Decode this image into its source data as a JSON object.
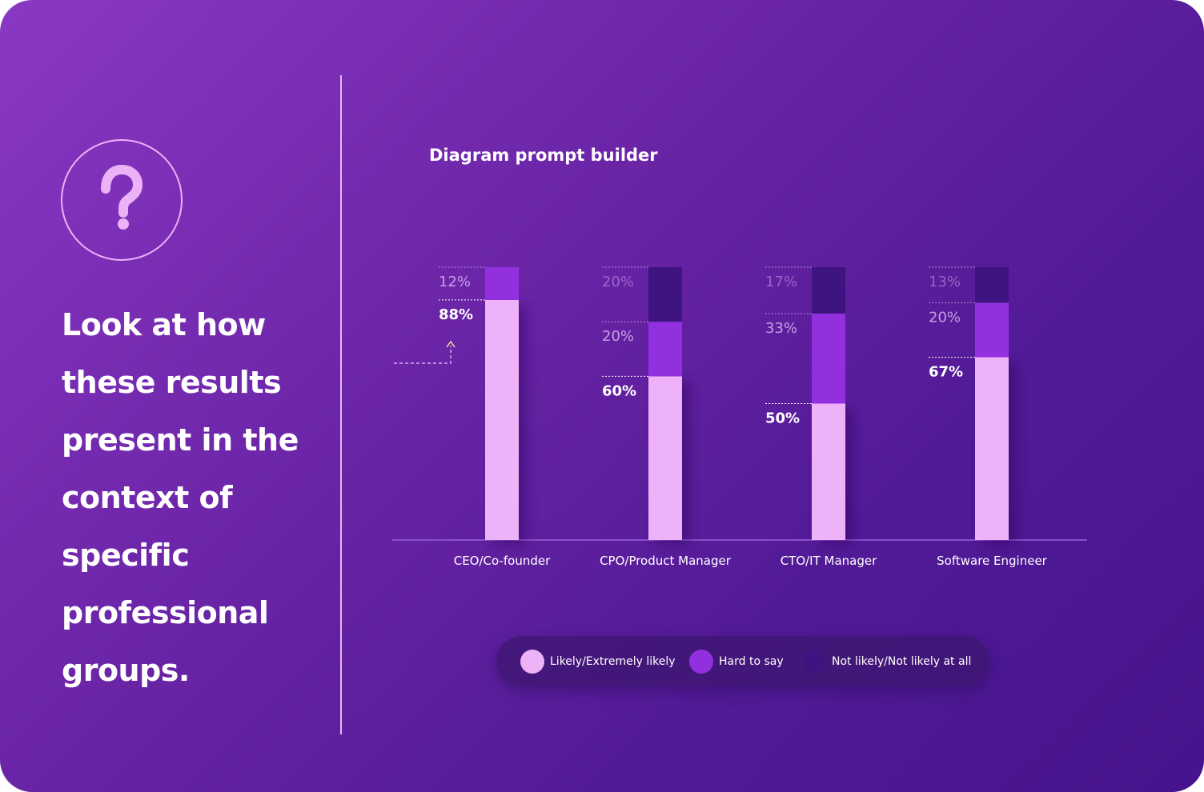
{
  "left_panel": {
    "icon": "question-mark-icon",
    "headline": "Look at how these results present in the context of specific professional groups."
  },
  "chart_data": {
    "type": "bar",
    "stacked": true,
    "title": "Diagram prompt builder",
    "categories": [
      "CEO/Co-founder",
      "CPO/Product Manager",
      "CTO/IT Manager",
      "Software Engineer"
    ],
    "series": [
      {
        "name": "Likely/Extremely likely",
        "values": [
          88,
          60,
          50,
          67
        ],
        "color": "#edb2f7"
      },
      {
        "name": "Hard to say",
        "values": [
          12,
          20,
          33,
          20
        ],
        "color": "#9230e0"
      },
      {
        "name": "Not likely/Not likely at all",
        "values": [
          0,
          20,
          17,
          13
        ],
        "color": "#3e1481"
      }
    ],
    "segment_labels": [
      [
        "88%",
        "12%",
        ""
      ],
      [
        "60%",
        "20%",
        "20%"
      ],
      [
        "50%",
        "33%",
        "17%"
      ],
      [
        "67%",
        "20%",
        "13%"
      ]
    ],
    "ylim": [
      0,
      100
    ],
    "legend_position": "bottom",
    "grid": false
  },
  "colors": {
    "background_start": "#8a38c4",
    "background_end": "#45148d",
    "accent_light": "#edb2f7",
    "accent_mid": "#9230e0",
    "accent_dark": "#3e1481"
  }
}
